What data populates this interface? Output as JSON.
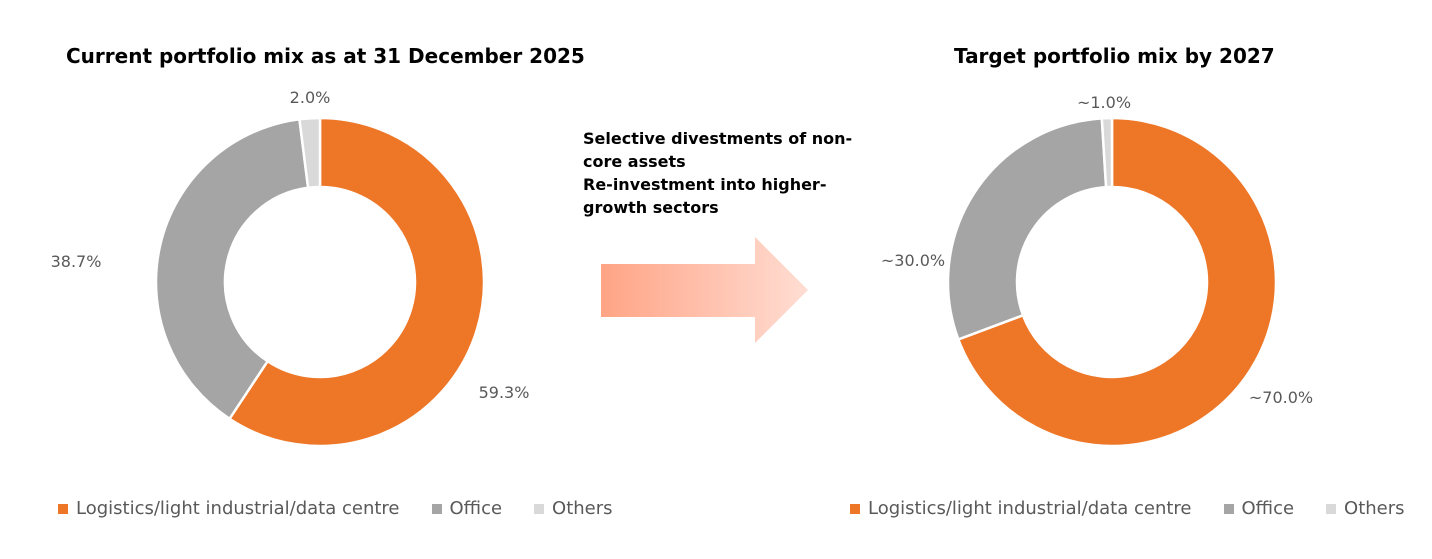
{
  "colors": {
    "logistics": "#EE7627",
    "office": "#A5A5A5",
    "others": "#D9D9D9",
    "arrow_start": "#FFA485",
    "arrow_end": "#FFDDD3"
  },
  "annotation": [
    "Selective divestments of non-core assets",
    "Re-investment into higher-growth sectors"
  ],
  "chart_data": [
    {
      "type": "donut",
      "title": "Current portfolio mix as at 31 December 2025",
      "categories": [
        "Logistics/light industrial/data centre",
        "Office",
        "Others"
      ],
      "values": [
        59.3,
        38.7,
        2.0
      ],
      "data_labels": [
        "59.3%",
        "38.7%",
        "2.0%"
      ],
      "legend": "bottom"
    },
    {
      "type": "donut",
      "title": "Target portfolio mix by 2027",
      "categories": [
        "Logistics/light industrial/data centre",
        "Office",
        "Others"
      ],
      "values": [
        70.0,
        30.0,
        1.0
      ],
      "data_labels": [
        "~70.0%",
        "~30.0%",
        "~1.0%"
      ],
      "legend": "bottom"
    }
  ]
}
